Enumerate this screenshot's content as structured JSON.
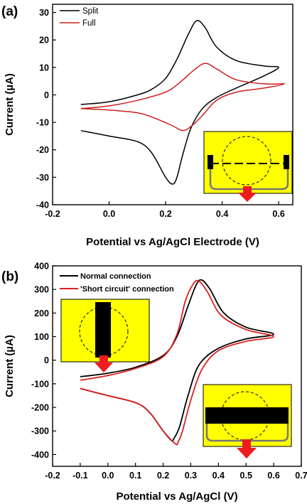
{
  "chart_data": [
    {
      "panel": "(a)",
      "type": "line",
      "xlabel": "Potential vs Ag/AgCl Electrode (V)",
      "ylabel": "Current (µA)",
      "xlim": [
        -0.2,
        0.65
      ],
      "ylim": [
        -40,
        33
      ],
      "xticks": [
        -0.2,
        0.0,
        0.2,
        0.4,
        0.6
      ],
      "xtick_labels": [
        "-0.2",
        "0.0",
        "0.2",
        "0.4",
        "0.6"
      ],
      "yticks": [
        -40,
        -30,
        -20,
        -10,
        0,
        10,
        20,
        30
      ],
      "ytick_labels": [
        "-40",
        "-30",
        "-20",
        "-10",
        "0",
        "10",
        "20",
        "30"
      ],
      "legend_position": "top-left",
      "series": [
        {
          "name": "Split",
          "color": "#000000",
          "x": [
            -0.1,
            0.0,
            0.1,
            0.15,
            0.2,
            0.24,
            0.28,
            0.31,
            0.34,
            0.38,
            0.45,
            0.55,
            0.6,
            0.55,
            0.45,
            0.38,
            0.33,
            0.29,
            0.26,
            0.24,
            0.225,
            0.2,
            0.15,
            0.1,
            0.0,
            -0.1
          ],
          "y": [
            -3.5,
            -2.5,
            0.0,
            2.0,
            6.0,
            13.0,
            22.0,
            27.0,
            24.5,
            17.5,
            12.5,
            10.5,
            10.0,
            7.0,
            2.5,
            -1.0,
            -5.0,
            -12.0,
            -22.0,
            -30.0,
            -32.5,
            -30.0,
            -21.0,
            -17.0,
            -15.0,
            -13.0
          ]
        },
        {
          "name": "Full",
          "color": "#cc1f1f",
          "x": [
            -0.1,
            0.0,
            0.1,
            0.2,
            0.25,
            0.3,
            0.34,
            0.38,
            0.45,
            0.55,
            0.62,
            0.55,
            0.45,
            0.38,
            0.33,
            0.29,
            0.26,
            0.22,
            0.15,
            0.1,
            0.0,
            -0.1
          ],
          "y": [
            -5.0,
            -4.0,
            -2.0,
            1.0,
            4.5,
            9.0,
            11.5,
            9.5,
            5.5,
            4.0,
            4.0,
            2.5,
            1.0,
            -2.0,
            -7.5,
            -11.5,
            -13.0,
            -11.0,
            -8.0,
            -6.5,
            -5.5,
            -5.0
          ]
        }
      ],
      "inset": {
        "fill": "#ffff00",
        "arrow_color": "#ee1c1c"
      }
    },
    {
      "panel": "(b)",
      "type": "line",
      "xlabel": "Potential vs Ag/AgCl (V)",
      "ylabel": "Current (µA)",
      "xlim": [
        -0.2,
        0.7
      ],
      "ylim": [
        -450,
        400
      ],
      "xticks": [
        -0.2,
        -0.1,
        0.0,
        0.1,
        0.2,
        0.3,
        0.4,
        0.5,
        0.6,
        0.7
      ],
      "xtick_labels": [
        "-0.2",
        "-0.1",
        "0.0",
        "0.1",
        "0.2",
        "0.3",
        "0.4",
        "0.5",
        "0.6",
        "0.7"
      ],
      "yticks": [
        -400,
        -300,
        -200,
        -100,
        0,
        100,
        200,
        300,
        400
      ],
      "ytick_labels": [
        "-400",
        "-300",
        "-200",
        "-100",
        "0",
        "100",
        "200",
        "300",
        "400"
      ],
      "legend_position": "top-left",
      "series": [
        {
          "name": "Normal connection",
          "color": "#000000",
          "x": [
            -0.1,
            0.0,
            0.1,
            0.2,
            0.25,
            0.29,
            0.32,
            0.34,
            0.37,
            0.42,
            0.5,
            0.6,
            0.5,
            0.4,
            0.33,
            0.29,
            0.26,
            0.24,
            0.23,
            0.2,
            0.15,
            0.1,
            0.0,
            -0.1
          ],
          "y": [
            -70,
            -55,
            -30,
            20,
            100,
            230,
            320,
            340,
            300,
            200,
            140,
            110,
            90,
            50,
            -20,
            -150,
            -280,
            -330,
            -340,
            -300,
            -220,
            -180,
            -150,
            -120
          ]
        },
        {
          "name": "'Short circuit' connection",
          "color": "#dd1f1f",
          "x": [
            -0.1,
            0.0,
            0.1,
            0.2,
            0.25,
            0.28,
            0.31,
            0.33,
            0.36,
            0.41,
            0.5,
            0.6,
            0.5,
            0.4,
            0.34,
            0.3,
            0.27,
            0.255,
            0.245,
            0.2,
            0.15,
            0.1,
            0.0,
            -0.1
          ],
          "y": [
            -85,
            -65,
            -35,
            15,
            110,
            250,
            325,
            335,
            290,
            190,
            130,
            100,
            80,
            40,
            -40,
            -170,
            -300,
            -345,
            -355,
            -300,
            -220,
            -180,
            -150,
            -120
          ]
        }
      ],
      "insets": [
        {
          "fill": "#ffff00",
          "arrow_color": "#ee1c1c"
        },
        {
          "fill": "#ffff00",
          "arrow_color": "#ee1c1c"
        }
      ]
    }
  ]
}
